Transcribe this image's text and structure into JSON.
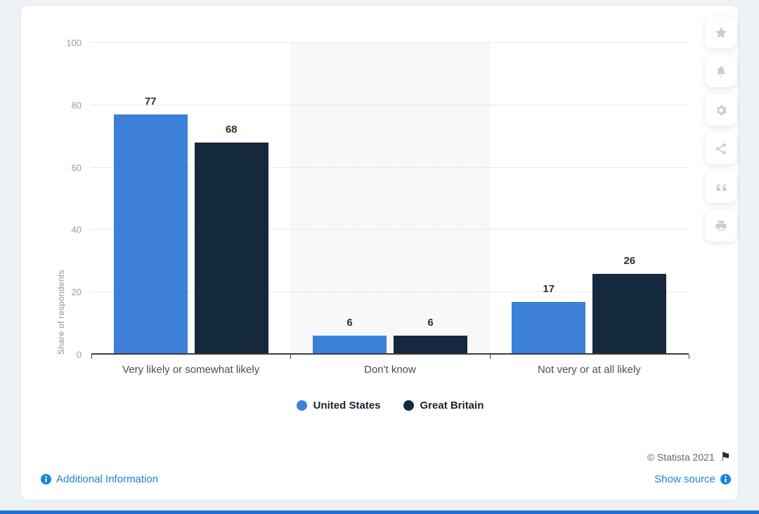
{
  "chart_data": {
    "type": "bar",
    "categories": [
      "Very likely or somewhat likely",
      "Don't know",
      "Not very or at all likely"
    ],
    "series": [
      {
        "name": "United States",
        "color": "#3d80d9",
        "values": [
          77,
          6,
          17
        ]
      },
      {
        "name": "Great Britain",
        "color": "#14283e",
        "values": [
          68,
          6,
          26
        ]
      }
    ],
    "title": "",
    "xlabel": "",
    "ylabel": "Share of respondents",
    "ylim": [
      0,
      100
    ],
    "yticks": [
      0,
      20,
      40,
      60,
      80,
      100
    ],
    "grid": "horizontal-dotted",
    "legend_position": "bottom",
    "highlighted_category_index": 1
  },
  "toolbar": {
    "icons": [
      "star-icon",
      "bell-icon",
      "gear-icon",
      "share-icon",
      "quote-icon",
      "print-icon"
    ]
  },
  "footer": {
    "copyright": "© Statista 2021",
    "flag": "⚑",
    "additional_info": "Additional Information",
    "show_source": "Show source"
  },
  "colors": {
    "series_us": "#3d80d9",
    "series_gb": "#14283e",
    "link_blue": "#1586d8",
    "accent_bottom_bar": "#1c6fd6",
    "highlight_band": "#f7f8f9",
    "icon_gray": "#c6cdd5"
  }
}
